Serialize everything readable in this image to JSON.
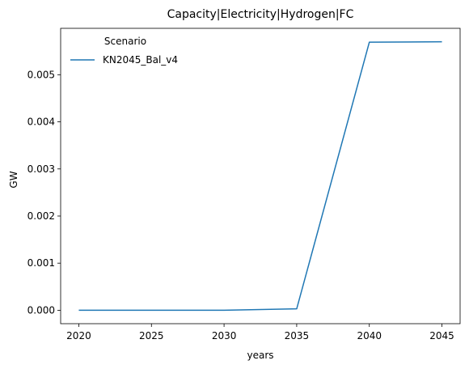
{
  "chart_data": {
    "type": "line",
    "title": "Capacity|Electricity|Hydrogen|FC",
    "xlabel": "years",
    "ylabel": "GW",
    "x": [
      2020,
      2025,
      2030,
      2035,
      2040,
      2045
    ],
    "series": [
      {
        "name": "KN2045_Bal_v4",
        "color": "#1f77b4",
        "values": [
          0.0,
          0.0,
          0.0,
          3e-05,
          0.00569,
          0.0057
        ]
      }
    ],
    "xticks": [
      "2020",
      "2025",
      "2030",
      "2035",
      "2040",
      "2045"
    ],
    "yticks": [
      "0.000",
      "0.001",
      "0.002",
      "0.003",
      "0.004",
      "0.005"
    ],
    "ylim": [
      -0.000285,
      0.005985
    ],
    "xlim": [
      2018.75,
      2046.25
    ],
    "grid": false,
    "legend": {
      "title": "Scenario",
      "placement": "upper-left"
    }
  }
}
